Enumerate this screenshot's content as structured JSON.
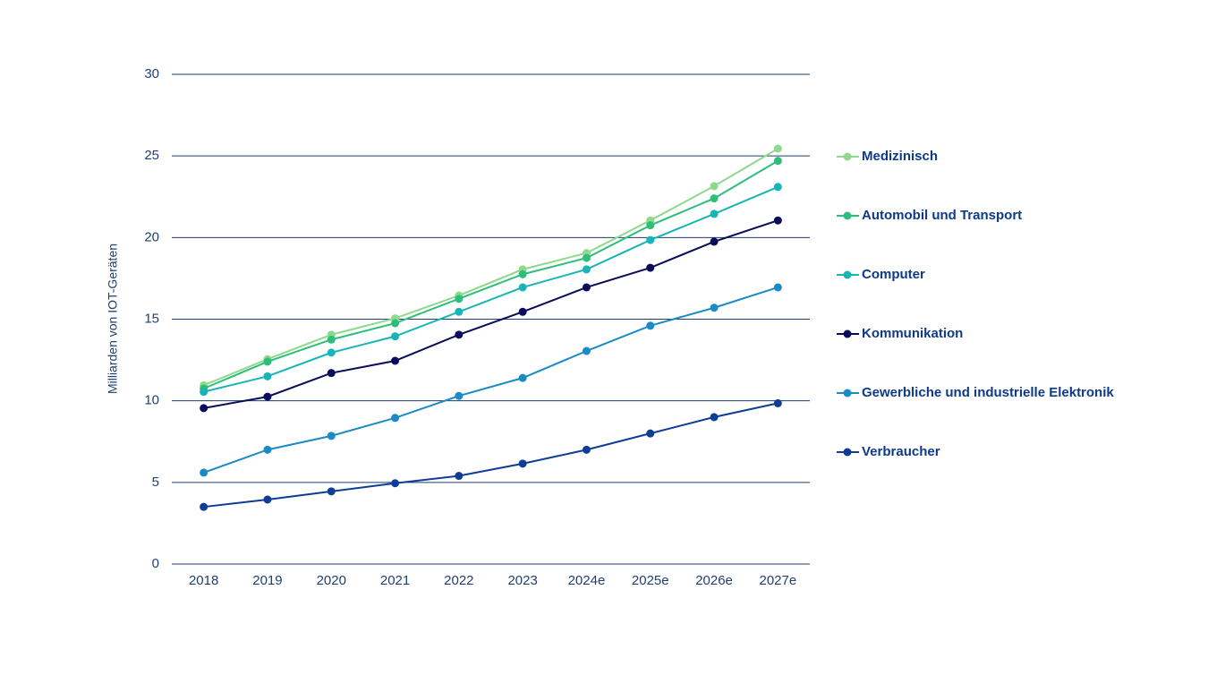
{
  "chart_data": {
    "type": "line",
    "y_label": "Milliarden von IOT-Geräten",
    "categories": [
      "2018",
      "2019",
      "2020",
      "2021",
      "2022",
      "2023",
      "2024e",
      "2025e",
      "2026e",
      "2027e"
    ],
    "series": [
      {
        "name": "Medizinisch",
        "color": "#8fd88c",
        "values": [
          10.95,
          12.55,
          14.05,
          15.05,
          16.45,
          18.05,
          19.05,
          21.05,
          23.15,
          25.45
        ]
      },
      {
        "name": "Automobil und Transport",
        "color": "#2dbf7a",
        "values": [
          10.75,
          12.4,
          13.75,
          14.75,
          16.25,
          17.75,
          18.75,
          20.75,
          22.4,
          24.7
        ]
      },
      {
        "name": "Computer",
        "color": "#17b5b8",
        "values": [
          10.55,
          11.5,
          12.95,
          13.95,
          15.45,
          16.95,
          18.05,
          19.85,
          21.45,
          23.1
        ]
      },
      {
        "name": "Kommunikation",
        "color": "#0b0b5c",
        "values": [
          9.55,
          10.25,
          11.7,
          12.45,
          14.05,
          15.45,
          16.95,
          18.15,
          19.75,
          21.05
        ]
      },
      {
        "name": "Gewerbliche und industrielle Elektronik",
        "color": "#1a8bc4",
        "values": [
          5.6,
          7.0,
          7.85,
          8.95,
          10.3,
          11.4,
          13.05,
          14.6,
          15.7,
          16.95
        ]
      },
      {
        "name": "Verbraucher",
        "color": "#0f3d96",
        "values": [
          3.5,
          3.95,
          4.45,
          4.95,
          5.4,
          6.15,
          7.0,
          8.0,
          9.0,
          9.85
        ]
      }
    ],
    "ylim": [
      0,
      30
    ],
    "yticks": [
      0,
      5,
      10,
      15,
      20,
      25,
      30
    ],
    "grid": true,
    "legend": "right"
  }
}
